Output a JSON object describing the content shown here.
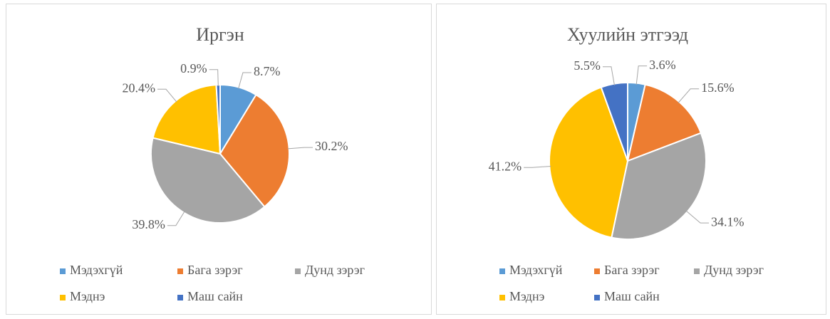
{
  "chart_data": [
    {
      "type": "pie",
      "title": "Иргэн",
      "categories": [
        "Мэдэхгүй",
        "Бага зэрэг",
        "Дунд зэрэг",
        "Мэднэ",
        "Маш сайн"
      ],
      "values": [
        8.7,
        30.2,
        39.8,
        20.4,
        0.9
      ],
      "value_labels": [
        "8.7%",
        "30.2%",
        "39.8%",
        "20.4%",
        "0.9%"
      ],
      "colors": [
        "#5b9bd5",
        "#ed7d31",
        "#a5a5a5",
        "#ffc000",
        "#4472c4"
      ]
    },
    {
      "type": "pie",
      "title": "Хуулийн этгээд",
      "categories": [
        "Мэдэхгүй",
        "Бага зэрэг",
        "Дунд зэрэг",
        "Мэднэ",
        "Маш сайн"
      ],
      "values": [
        3.6,
        15.6,
        34.1,
        41.2,
        5.5
      ],
      "value_labels": [
        "3.6%",
        "15.6%",
        "34.1%",
        "41.2%",
        "5.5%"
      ],
      "colors": [
        "#5b9bd5",
        "#ed7d31",
        "#a5a5a5",
        "#ffc000",
        "#4472c4"
      ]
    }
  ]
}
